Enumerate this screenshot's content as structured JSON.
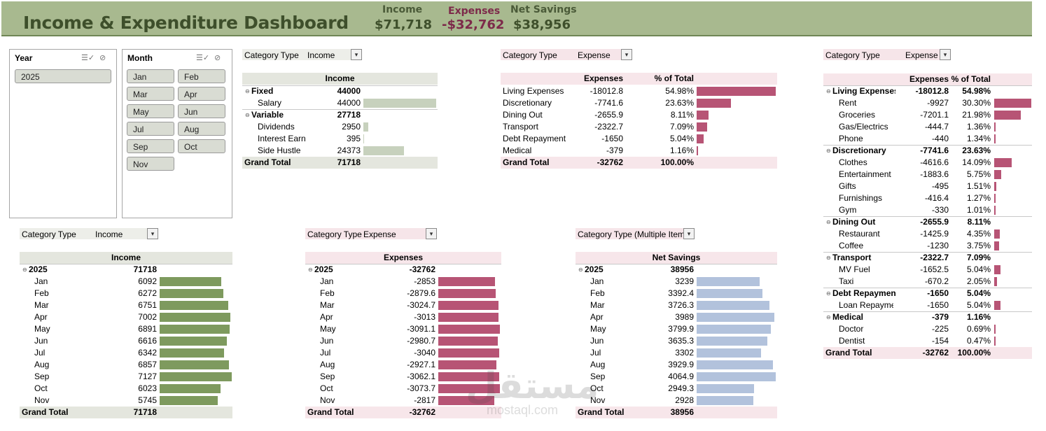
{
  "header": {
    "title": "Income & Expenditure Dashboard",
    "kpis": [
      {
        "label": "Income",
        "value": "$71,718"
      },
      {
        "label": "Expenses",
        "value": "-$32,762"
      },
      {
        "label": "Net Savings",
        "value": "$38,956"
      }
    ]
  },
  "slicers": {
    "year": {
      "title": "Year",
      "items": [
        "2025"
      ]
    },
    "month": {
      "title": "Month",
      "items": [
        "Jan",
        "Feb",
        "Mar",
        "Apr",
        "May",
        "Jun",
        "Jul",
        "Aug",
        "Sep",
        "Oct",
        "Nov"
      ]
    }
  },
  "colors": {
    "green": "#c7d1bd",
    "green_dark": "#7e9a5e",
    "pink": "#b75475",
    "blue": "#b2c2dc"
  },
  "pt_income_cat": {
    "filter_label": "Category Type",
    "filter_value": "Income",
    "col_header": "Income",
    "rows": [
      {
        "label": "Fixed",
        "value": "44000",
        "level": 0
      },
      {
        "label": "Salary",
        "value": "44000",
        "level": 1,
        "bar": 44000
      },
      {
        "label": "Variable",
        "value": "27718",
        "level": 0
      },
      {
        "label": "Dividends",
        "value": "2950",
        "level": 1,
        "bar": 2950
      },
      {
        "label": "Interest Earned",
        "value": "395",
        "level": 1,
        "bar": 395
      },
      {
        "label": "Side Hustle",
        "value": "24373",
        "level": 1,
        "bar": 24373
      }
    ],
    "total_label": "Grand Total",
    "total_value": "71718"
  },
  "pt_exp_cat": {
    "filter_label": "Category Type",
    "filter_value": "Expense",
    "col1": "Expenses",
    "col2": "% of Total",
    "rows": [
      {
        "label": "Living Expenses",
        "value": "-18012.8",
        "pct": "54.98%",
        "bar": 54.98
      },
      {
        "label": "Discretionary",
        "value": "-7741.6",
        "pct": "23.63%",
        "bar": 23.63
      },
      {
        "label": "Dining Out",
        "value": "-2655.9",
        "pct": "8.11%",
        "bar": 8.11
      },
      {
        "label": "Transport",
        "value": "-2322.7",
        "pct": "7.09%",
        "bar": 7.09
      },
      {
        "label": "Debt Repayment",
        "value": "-1650",
        "pct": "5.04%",
        "bar": 5.04
      },
      {
        "label": "Medical",
        "value": "-379",
        "pct": "1.16%",
        "bar": 1.16
      }
    ],
    "total_label": "Grand Total",
    "total_value": "-32762",
    "total_pct": "100.00%"
  },
  "pt_exp_detail": {
    "filter_label": "Category Type",
    "filter_value": "Expense",
    "col1": "Expenses",
    "col2": "% of Total",
    "rows": [
      {
        "label": "Living Expenses",
        "value": "-18012.8",
        "pct": "54.98%",
        "level": 0
      },
      {
        "label": "Rent",
        "value": "-9927",
        "pct": "30.30%",
        "level": 1,
        "bar": 30.3
      },
      {
        "label": "Groceries",
        "value": "-7201.1",
        "pct": "21.98%",
        "level": 1,
        "bar": 21.98
      },
      {
        "label": "Gas/Electrics",
        "value": "-444.7",
        "pct": "1.36%",
        "level": 1,
        "bar": 1.36
      },
      {
        "label": "Phone",
        "value": "-440",
        "pct": "1.34%",
        "level": 1,
        "bar": 1.34
      },
      {
        "label": "Discretionary",
        "value": "-7741.6",
        "pct": "23.63%",
        "level": 0
      },
      {
        "label": "Clothes",
        "value": "-4616.6",
        "pct": "14.09%",
        "level": 1,
        "bar": 14.09
      },
      {
        "label": "Entertainment",
        "value": "-1883.6",
        "pct": "5.75%",
        "level": 1,
        "bar": 5.75
      },
      {
        "label": "Gifts",
        "value": "-495",
        "pct": "1.51%",
        "level": 1,
        "bar": 1.51
      },
      {
        "label": "Furnishings",
        "value": "-416.4",
        "pct": "1.27%",
        "level": 1,
        "bar": 1.27
      },
      {
        "label": "Gym",
        "value": "-330",
        "pct": "1.01%",
        "level": 1,
        "bar": 1.01
      },
      {
        "label": "Dining Out",
        "value": "-2655.9",
        "pct": "8.11%",
        "level": 0
      },
      {
        "label": "Restaurant",
        "value": "-1425.9",
        "pct": "4.35%",
        "level": 1,
        "bar": 4.35
      },
      {
        "label": "Coffee",
        "value": "-1230",
        "pct": "3.75%",
        "level": 1,
        "bar": 3.75
      },
      {
        "label": "Transport",
        "value": "-2322.7",
        "pct": "7.09%",
        "level": 0
      },
      {
        "label": "MV Fuel",
        "value": "-1652.5",
        "pct": "5.04%",
        "level": 1,
        "bar": 5.04
      },
      {
        "label": "Taxi",
        "value": "-670.2",
        "pct": "2.05%",
        "level": 1,
        "bar": 2.05
      },
      {
        "label": "Debt Repayment",
        "value": "-1650",
        "pct": "5.04%",
        "level": 0
      },
      {
        "label": "Loan Repayment",
        "value": "-1650",
        "pct": "5.04%",
        "level": 1,
        "bar": 5.04
      },
      {
        "label": "Medical",
        "value": "-379",
        "pct": "1.16%",
        "level": 0
      },
      {
        "label": "Doctor",
        "value": "-225",
        "pct": "0.69%",
        "level": 1,
        "bar": 0.69
      },
      {
        "label": "Dentist",
        "value": "-154",
        "pct": "0.47%",
        "level": 1,
        "bar": 0.47
      }
    ],
    "total_label": "Grand Total",
    "total_value": "-32762",
    "total_pct": "100.00%"
  },
  "pt_income_month": {
    "filter_label": "Category Type",
    "filter_value": "Income",
    "col_header": "Income",
    "year_label": "2025",
    "year_value": "71718",
    "rows": [
      {
        "label": "Jan",
        "value": "6092",
        "bar": 6092
      },
      {
        "label": "Feb",
        "value": "6272",
        "bar": 6272
      },
      {
        "label": "Mar",
        "value": "6751",
        "bar": 6751
      },
      {
        "label": "Apr",
        "value": "7002",
        "bar": 7002
      },
      {
        "label": "May",
        "value": "6891",
        "bar": 6891
      },
      {
        "label": "Jun",
        "value": "6616",
        "bar": 6616
      },
      {
        "label": "Jul",
        "value": "6342",
        "bar": 6342
      },
      {
        "label": "Aug",
        "value": "6857",
        "bar": 6857
      },
      {
        "label": "Sep",
        "value": "7127",
        "bar": 7127
      },
      {
        "label": "Oct",
        "value": "6023",
        "bar": 6023
      },
      {
        "label": "Nov",
        "value": "5745",
        "bar": 5745
      }
    ],
    "total_label": "Grand Total",
    "total_value": "71718"
  },
  "pt_exp_month": {
    "filter_label": "Category Type",
    "filter_value": "Expense",
    "col_header": "Expenses",
    "year_label": "2025",
    "year_value": "-32762",
    "rows": [
      {
        "label": "Jan",
        "value": "-2853",
        "bar": 2853
      },
      {
        "label": "Feb",
        "value": "-2879.6",
        "bar": 2879.6
      },
      {
        "label": "Mar",
        "value": "-3024.7",
        "bar": 3024.7
      },
      {
        "label": "Apr",
        "value": "-3013",
        "bar": 3013
      },
      {
        "label": "May",
        "value": "-3091.1",
        "bar": 3091.1
      },
      {
        "label": "Jun",
        "value": "-2980.7",
        "bar": 2980.7
      },
      {
        "label": "Jul",
        "value": "-3040",
        "bar": 3040
      },
      {
        "label": "Aug",
        "value": "-2927.1",
        "bar": 2927.1
      },
      {
        "label": "Sep",
        "value": "-3062.1",
        "bar": 3062.1
      },
      {
        "label": "Oct",
        "value": "-3073.7",
        "bar": 3073.7
      },
      {
        "label": "Nov",
        "value": "-2817",
        "bar": 2817
      }
    ],
    "total_label": "Grand Total",
    "total_value": "-32762"
  },
  "pt_net_month": {
    "filter_label": "Category Type",
    "filter_value": "(Multiple Items)",
    "col_header": "Net Savings",
    "year_label": "2025",
    "year_value": "38956",
    "rows": [
      {
        "label": "Jan",
        "value": "3239",
        "bar": 3239
      },
      {
        "label": "Feb",
        "value": "3392.4",
        "bar": 3392.4
      },
      {
        "label": "Mar",
        "value": "3726.3",
        "bar": 3726.3
      },
      {
        "label": "Apr",
        "value": "3989",
        "bar": 3989
      },
      {
        "label": "May",
        "value": "3799.9",
        "bar": 3799.9
      },
      {
        "label": "Jun",
        "value": "3635.3",
        "bar": 3635.3
      },
      {
        "label": "Jul",
        "value": "3302",
        "bar": 3302
      },
      {
        "label": "Aug",
        "value": "3929.9",
        "bar": 3929.9
      },
      {
        "label": "Sep",
        "value": "4064.9",
        "bar": 4064.9
      },
      {
        "label": "Oct",
        "value": "2949.3",
        "bar": 2949.3
      },
      {
        "label": "Nov",
        "value": "2928",
        "bar": 2928
      }
    ],
    "total_label": "Grand Total",
    "total_value": "38956"
  },
  "watermark": "mostaql.com"
}
